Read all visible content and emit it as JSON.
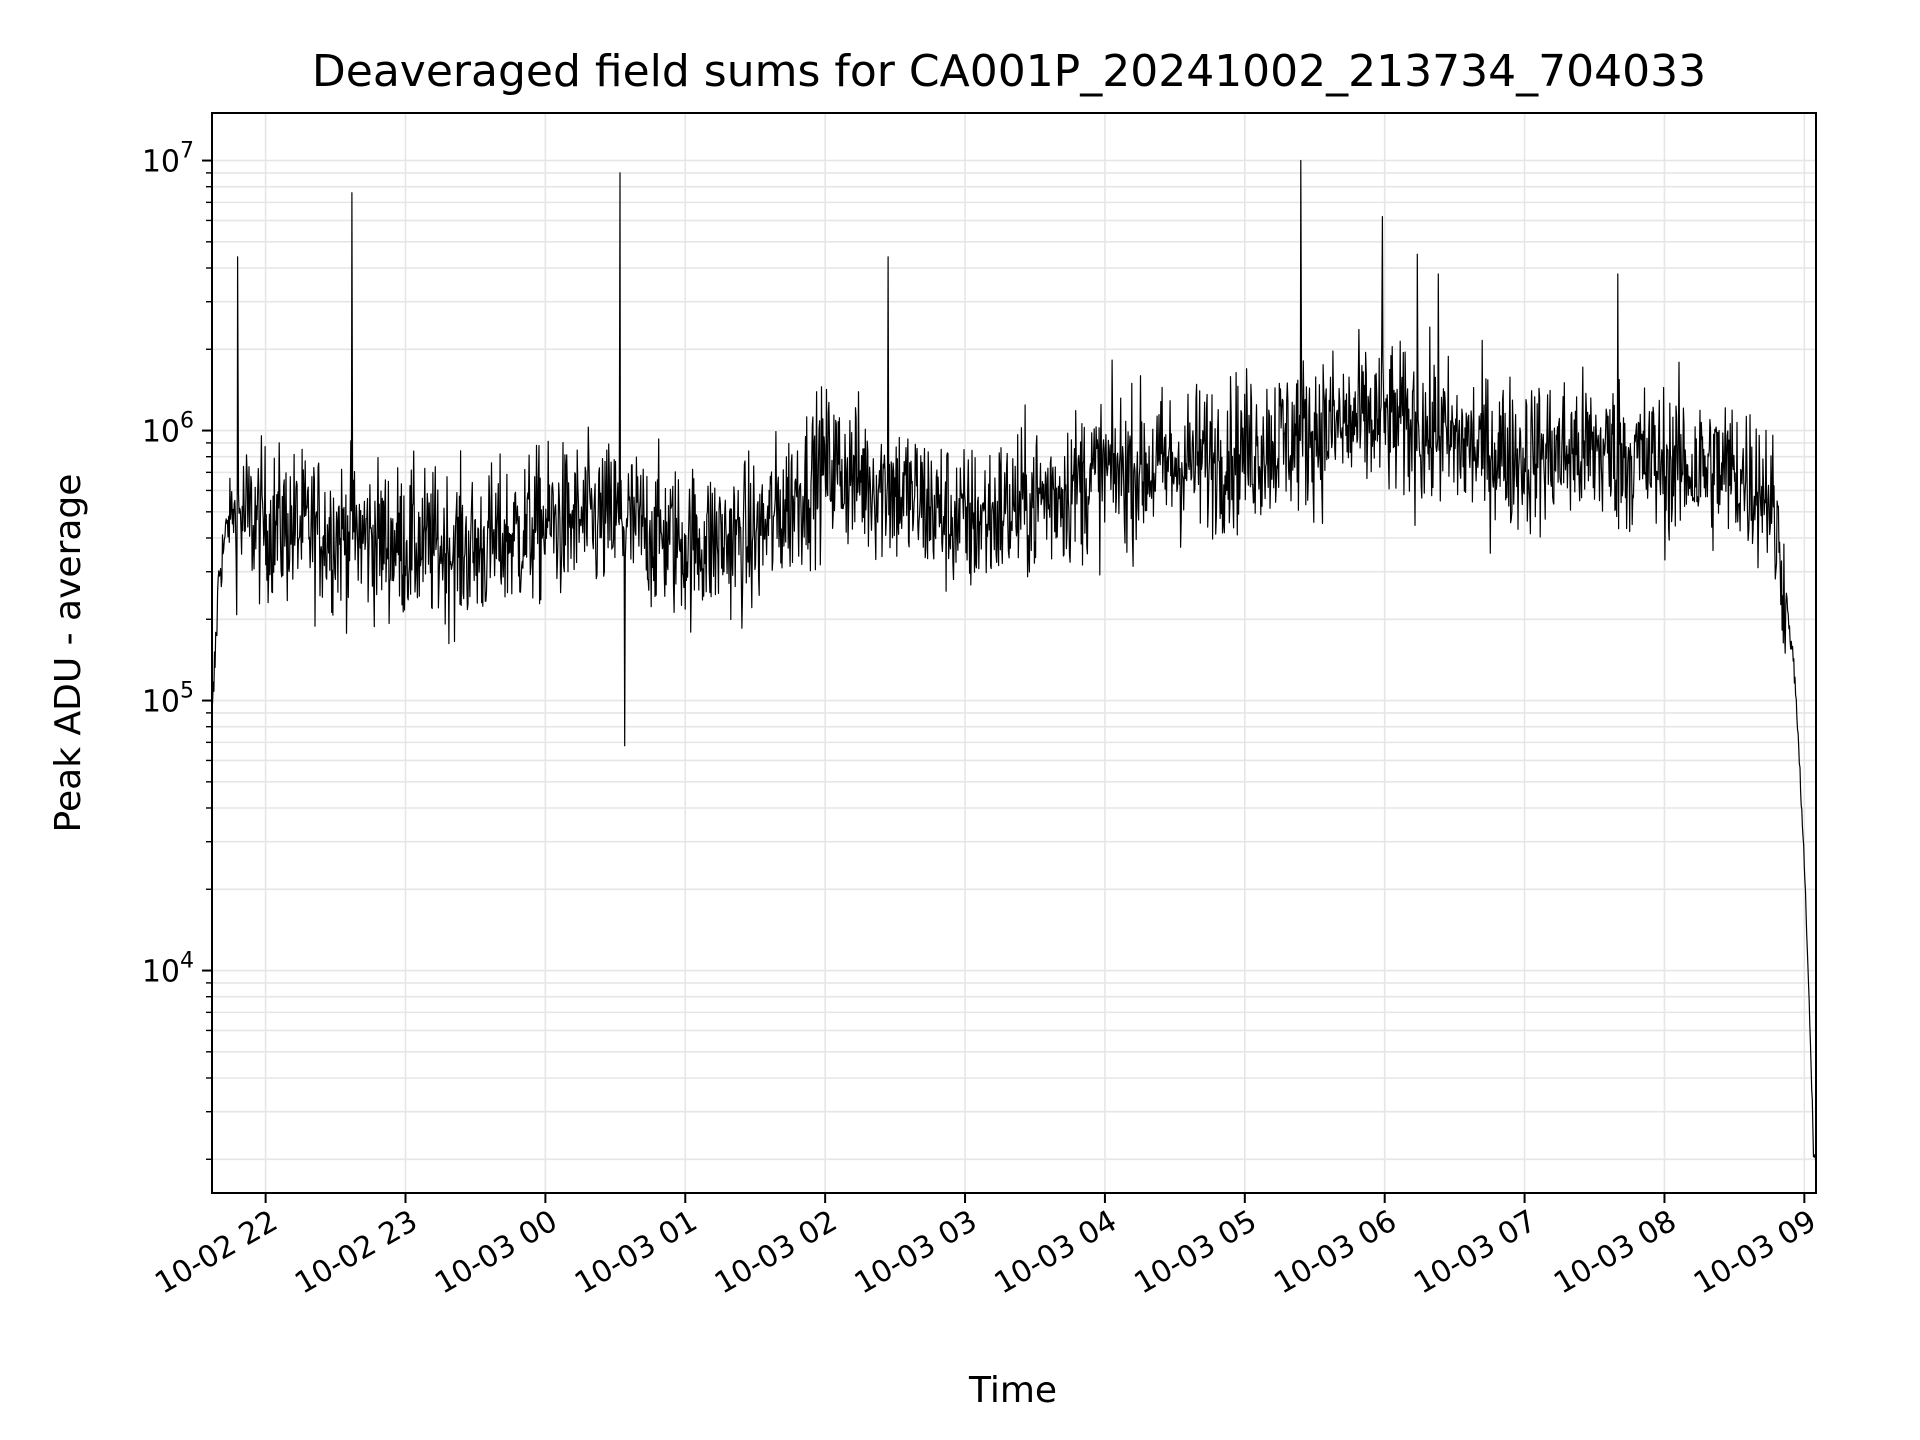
{
  "chart_data": {
    "type": "line",
    "title": "Deaveraged field sums for CA001P_20241002_213734_704033",
    "xlabel": "Time",
    "ylabel": "Peak ADU - average",
    "y_scale": "log",
    "ylim": [
      1500,
      15000000
    ],
    "xlim": [
      "2024-10-02 21:37",
      "2024-10-03 09:05"
    ],
    "grid": true,
    "line_color": "#000000",
    "grid_color": "#e6e6e6",
    "x_ticks": [
      {
        "value": "2024-10-02 22:00",
        "label": "10-02 22"
      },
      {
        "value": "2024-10-02 23:00",
        "label": "10-02 23"
      },
      {
        "value": "2024-10-03 00:00",
        "label": "10-03 00"
      },
      {
        "value": "2024-10-03 01:00",
        "label": "10-03 01"
      },
      {
        "value": "2024-10-03 02:00",
        "label": "10-03 02"
      },
      {
        "value": "2024-10-03 03:00",
        "label": "10-03 03"
      },
      {
        "value": "2024-10-03 04:00",
        "label": "10-03 04"
      },
      {
        "value": "2024-10-03 05:00",
        "label": "10-03 05"
      },
      {
        "value": "2024-10-03 06:00",
        "label": "10-03 06"
      },
      {
        "value": "2024-10-03 07:00",
        "label": "10-03 07"
      },
      {
        "value": "2024-10-03 08:00",
        "label": "10-03 08"
      },
      {
        "value": "2024-10-03 09:00",
        "label": "10-03 09"
      }
    ],
    "y_ticks": [
      {
        "value": 10000,
        "base": "10",
        "exp": "4"
      },
      {
        "value": 100000,
        "base": "10",
        "exp": "5"
      },
      {
        "value": 1000000,
        "base": "10",
        "exp": "6"
      },
      {
        "value": 10000000,
        "base": "10",
        "exp": "7"
      }
    ],
    "envelope": {
      "x": [
        "2024-10-02 21:37",
        "2024-10-02 21:40",
        "2024-10-02 21:45",
        "2024-10-02 21:50",
        "2024-10-02 22:00",
        "2024-10-02 22:30",
        "2024-10-02 23:00",
        "2024-10-02 23:30",
        "2024-10-03 00:00",
        "2024-10-03 00:30",
        "2024-10-03 01:00",
        "2024-10-03 01:30",
        "2024-10-03 02:00",
        "2024-10-03 02:30",
        "2024-10-03 03:00",
        "2024-10-03 03:30",
        "2024-10-03 04:00",
        "2024-10-03 04:30",
        "2024-10-03 05:00",
        "2024-10-03 05:30",
        "2024-10-03 06:00",
        "2024-10-03 06:30",
        "2024-10-03 07:00",
        "2024-10-03 07:30",
        "2024-10-03 08:00",
        "2024-10-03 08:30",
        "2024-10-03 08:45",
        "2024-10-03 08:52",
        "2024-10-03 08:56",
        "2024-10-03 09:00",
        "2024-10-03 09:02",
        "2024-10-03 09:04"
      ],
      "median": [
        80000,
        300000,
        500000,
        480000,
        450000,
        420000,
        380000,
        360000,
        450000,
        470000,
        380000,
        400000,
        750000,
        600000,
        450000,
        550000,
        700000,
        750000,
        850000,
        1000000,
        1100000,
        900000,
        800000,
        850000,
        750000,
        700000,
        600000,
        250000,
        120000,
        25000,
        8000,
        2000
      ]
    },
    "spikes": [
      {
        "x": "2024-10-02 21:48",
        "y": 4400000
      },
      {
        "x": "2024-10-02 22:37",
        "y": 7600000
      },
      {
        "x": "2024-10-03 00:32",
        "y": 9000000
      },
      {
        "x": "2024-10-03 02:27",
        "y": 4400000
      },
      {
        "x": "2024-10-03 05:24",
        "y": 10000000
      },
      {
        "x": "2024-10-03 05:59",
        "y": 6200000
      },
      {
        "x": "2024-10-03 06:14",
        "y": 4500000
      },
      {
        "x": "2024-10-03 06:23",
        "y": 3800000
      },
      {
        "x": "2024-10-03 07:40",
        "y": 3800000
      },
      {
        "x": "2024-10-03 00:34",
        "y": 68000
      }
    ]
  }
}
